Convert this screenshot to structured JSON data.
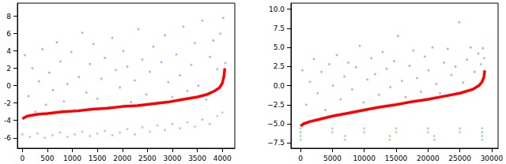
{
  "chart_data": [
    {
      "type": "scatter",
      "grid": false,
      "xlim": [
        -100,
        4250
      ],
      "xticks": [
        0,
        500,
        1000,
        1500,
        2000,
        2500,
        3000,
        3500,
        4000
      ],
      "ylim": [
        -7.2,
        9.5
      ],
      "yticks": [
        -6,
        -4,
        -2,
        0,
        2,
        4,
        6,
        8
      ],
      "series": [
        {
          "type": "scatter",
          "color": "#0000ff",
          "x": [
            50,
            120,
            200,
            260,
            330,
            400,
            470,
            540,
            610,
            690,
            760,
            830,
            900,
            980,
            1050,
            1130,
            1200,
            1280,
            1350,
            1420,
            1500,
            1580,
            1650,
            1720,
            1800,
            1870,
            1950,
            2020,
            2100,
            2170,
            2250,
            2320,
            2400,
            2480,
            2550,
            2620,
            2700,
            2780,
            2850,
            2920,
            3000,
            3080,
            3150,
            3220,
            3300,
            3380,
            3450,
            3520,
            3600,
            3680,
            3750,
            3820,
            3900,
            3960,
            4020,
            4060
          ],
          "values": [
            3.5,
            -1.2,
            2.0,
            -3.0,
            0.5,
            4.2,
            -2.2,
            1.5,
            -0.5,
            5.0,
            2.8,
            -1.8,
            0.2,
            3.9,
            -2.8,
            1.0,
            6.1,
            -0.8,
            2.5,
            4.8,
            -1.5,
            0.8,
            3.2,
            -2.5,
            5.5,
            1.8,
            -0.2,
            4.0,
            2.2,
            -1.9,
            0.6,
            6.5,
            3.0,
            -1.0,
            1.6,
            4.5,
            -2.0,
            2.7,
            5.8,
            0.4,
            -1.3,
            3.6,
            1.2,
            6.8,
            -0.6,
            2.4,
            4.9,
            0.0,
            7.5,
            -1.6,
            3.3,
            5.2,
            1.9,
            6.0,
            7.8,
            2.6
          ]
        },
        {
          "type": "scatter",
          "color": "#008000",
          "x": [
            0,
            150,
            300,
            450,
            600,
            750,
            900,
            1050,
            1200,
            1350,
            1500,
            1650,
            1800,
            1950,
            2100,
            2250,
            2400,
            2550,
            2700,
            2850,
            3000,
            3150,
            3300,
            3450,
            3600,
            3750,
            3900,
            4000
          ],
          "values": [
            -5.6,
            -5.9,
            -5.5,
            -6.0,
            -5.7,
            -5.4,
            -5.9,
            -5.6,
            -5.3,
            -5.8,
            -5.5,
            -5.2,
            -5.7,
            -5.4,
            -5.0,
            -5.6,
            -4.8,
            -5.3,
            -4.6,
            -5.1,
            -4.4,
            -4.9,
            -4.2,
            -4.7,
            -3.9,
            -4.4,
            -3.5,
            -3.1
          ]
        },
        {
          "type": "line",
          "color": "#ff0000",
          "x": [
            0,
            100,
            300,
            500,
            800,
            1100,
            1400,
            1700,
            2000,
            2300,
            2600,
            2900,
            3200,
            3500,
            3700,
            3850,
            3950,
            4000,
            4030,
            4050
          ],
          "values": [
            -3.8,
            -3.5,
            -3.3,
            -3.2,
            -3.0,
            -2.9,
            -2.7,
            -2.6,
            -2.4,
            -2.3,
            -2.1,
            -1.9,
            -1.6,
            -1.3,
            -1.0,
            -0.6,
            -0.2,
            0.3,
            1.0,
            2.0
          ]
        }
      ]
    },
    {
      "type": "scatter",
      "grid": false,
      "xlim": [
        -1500,
        31000
      ],
      "xticks": [
        0,
        5000,
        10000,
        15000,
        20000,
        25000,
        30000
      ],
      "ylim": [
        -8.2,
        10.8
      ],
      "yticks": [
        {
          "value": -7.5,
          "label": "−7.5"
        },
        {
          "value": -5,
          "label": "−5.0"
        },
        {
          "value": -2.5,
          "label": "−2.5"
        },
        {
          "value": 0,
          "label": "0.0"
        },
        {
          "value": 2.5,
          "label": "2.5"
        },
        {
          "value": 5,
          "label": "5.0"
        },
        {
          "value": 7.5,
          "label": "7.5"
        },
        {
          "value": 10,
          "label": "10.0"
        }
      ],
      "series": [
        {
          "type": "scatter",
          "color": "#0000ff",
          "x": [
            300,
            900,
            1500,
            2100,
            2700,
            3300,
            3900,
            4500,
            5100,
            5700,
            6300,
            6900,
            7500,
            8100,
            8700,
            9300,
            9900,
            10500,
            11100,
            11700,
            12300,
            12900,
            13500,
            14100,
            14700,
            15300,
            15900,
            16500,
            17100,
            17700,
            18300,
            18900,
            19500,
            20100,
            20700,
            21300,
            21900,
            22500,
            23100,
            23700,
            24300,
            24900,
            25500,
            26100,
            26700,
            27300,
            27900,
            28300,
            28600,
            28800
          ],
          "values": [
            2.0,
            -2.5,
            0.5,
            3.5,
            -1.0,
            1.8,
            -3.2,
            2.8,
            0.0,
            4.0,
            -1.8,
            1.2,
            3.0,
            -0.5,
            2.4,
            5.2,
            -2.2,
            0.8,
            3.6,
            1.5,
            -1.2,
            4.4,
            2.2,
            -0.2,
            3.2,
            6.5,
            0.6,
            -1.5,
            2.6,
            4.6,
            1.0,
            -0.8,
            3.8,
            2.0,
            5.0,
            0.2,
            -1.0,
            3.0,
            4.8,
            1.4,
            2.5,
            8.3,
            0.4,
            3.4,
            5.0,
            1.8,
            4.2,
            2.8,
            4.9,
            3.6
          ]
        },
        {
          "type": "scatter",
          "color": "#008000",
          "x": [
            0,
            5000,
            10000,
            15000,
            20000,
            25000,
            28500,
            0,
            5000,
            10000,
            15000,
            20000,
            25000,
            28500,
            0,
            7000,
            14000,
            21000,
            28500,
            0,
            7000,
            14000,
            21000,
            28500
          ],
          "values": [
            -5.6,
            -5.6,
            -5.6,
            -5.6,
            -5.6,
            -5.6,
            -5.6,
            -6.1,
            -6.1,
            -6.1,
            -6.1,
            -6.1,
            -6.1,
            -6.1,
            -6.6,
            -6.6,
            -6.6,
            -6.6,
            -6.6,
            -7.1,
            -7.1,
            -7.1,
            -7.1,
            -7.1
          ]
        },
        {
          "type": "line",
          "color": "#ff0000",
          "x": [
            0,
            500,
            1500,
            3000,
            5000,
            7500,
            10000,
            12500,
            15000,
            17500,
            20000,
            22500,
            25000,
            27000,
            28000,
            28500,
            28800,
            28900
          ],
          "values": [
            -5.3,
            -5.0,
            -4.7,
            -4.4,
            -4.0,
            -3.6,
            -3.2,
            -2.8,
            -2.5,
            -2.1,
            -1.8,
            -1.4,
            -1.0,
            -0.5,
            0.0,
            0.5,
            1.2,
            2.0
          ]
        }
      ]
    }
  ]
}
